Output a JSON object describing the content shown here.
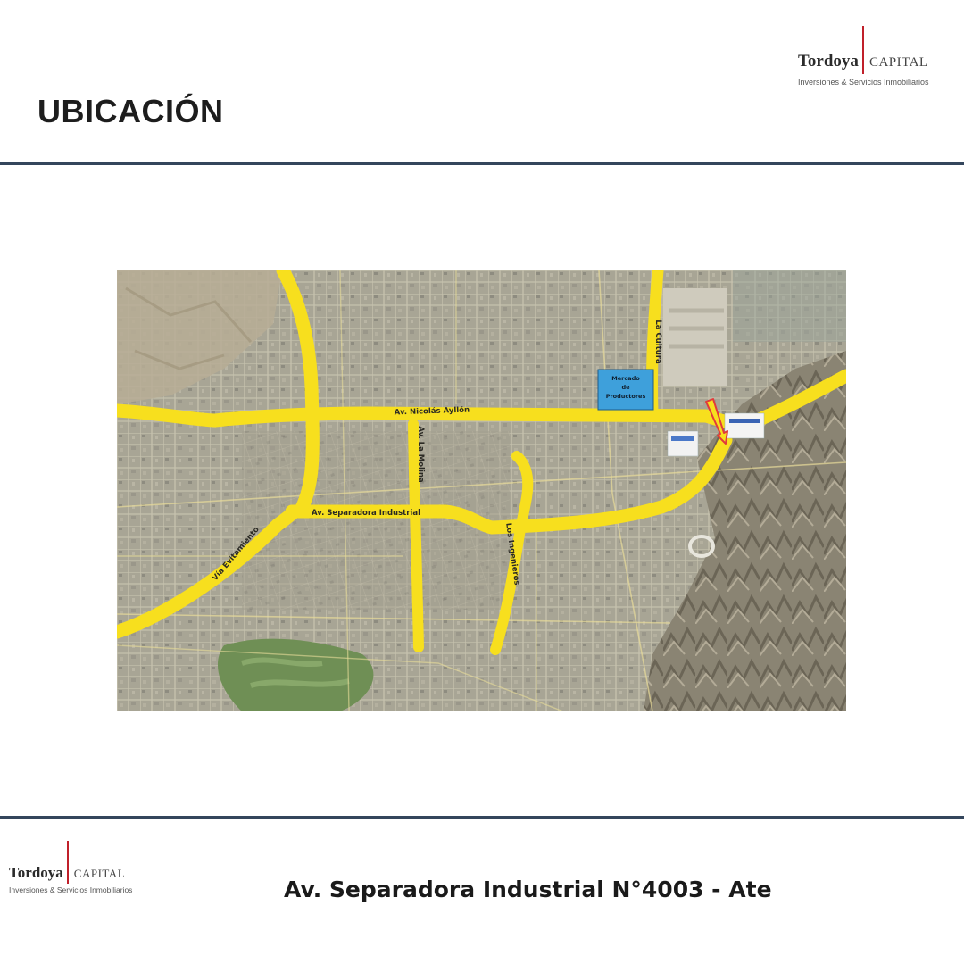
{
  "header": {
    "title": "UBICACIÓN",
    "logo": {
      "name": "Tordoya",
      "capital": "CAPITAL",
      "tagline": "Inversiones & Servicios Inmobiliarios"
    }
  },
  "map": {
    "streets": [
      "Av. Nicolás Ayllón",
      "Av. La Molina",
      "La Cultura",
      "Av. Separadora Industrial",
      "Vía Evitamiento",
      "Los Ingenieros"
    ],
    "place_labels": {
      "mercado": [
        "Mercado",
        "de",
        "Productores"
      ]
    },
    "colors": {
      "road": "#f7df1e",
      "ground": "#aaa493",
      "marker": "#e23a3a",
      "mercado_box": "#3ea0db"
    }
  },
  "footer": {
    "address": "Av. Separadora Industrial N°4003 - Ate",
    "logo": {
      "name": "Tordoya",
      "capital": "CAPITAL",
      "tagline": "Inversiones & Servicios Inmobiliarios"
    }
  },
  "colors": {
    "rule": "#34465c",
    "logo_bar": "#c0202a"
  }
}
